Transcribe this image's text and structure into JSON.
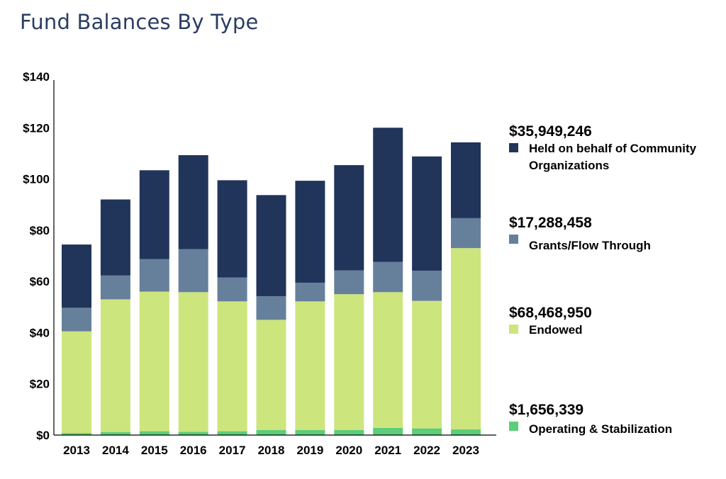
{
  "chart_data": {
    "type": "bar",
    "stacked": true,
    "title": "Fund Balances By Type",
    "xlabel": "",
    "ylabel": "",
    "ylim": [
      0,
      140
    ],
    "grid": false,
    "yticks": [
      {
        "value": 0,
        "label": "$0"
      },
      {
        "value": 20,
        "label": "$20"
      },
      {
        "value": 40,
        "label": "$40"
      },
      {
        "value": 60,
        "label": "$60"
      },
      {
        "value": 80,
        "label": "$80"
      },
      {
        "value": 100,
        "label": "$100"
      },
      {
        "value": 120,
        "label": "$120"
      },
      {
        "value": 140,
        "label": "$140"
      }
    ],
    "categories": [
      "2013",
      "2014",
      "2015",
      "2016",
      "2017",
      "2018",
      "2019",
      "2020",
      "2021",
      "2022",
      "2023"
    ],
    "series": [
      {
        "name": "Operating & Stabilization",
        "color": "#5ccd7a",
        "values": [
          0.8,
          1.2,
          1.5,
          1.3,
          1.5,
          2.0,
          2.0,
          2.0,
          2.8,
          2.6,
          2.2
        ]
      },
      {
        "name": "Endowed",
        "color": "#cde57d",
        "values": [
          39.7,
          51.8,
          54.5,
          54.5,
          50.7,
          43.0,
          50.2,
          53.0,
          53.0,
          49.8,
          70.8
        ]
      },
      {
        "name": "Grants/Flow Through",
        "color": "#66809c",
        "values": [
          9.2,
          9.3,
          12.7,
          16.8,
          9.3,
          9.2,
          7.3,
          9.3,
          11.8,
          11.8,
          11.7
        ]
      },
      {
        "name": "Held on behalf of Community Organizations",
        "color": "#213459",
        "values": [
          24.7,
          29.7,
          34.7,
          36.7,
          38.0,
          39.5,
          39.8,
          41.1,
          52.4,
          44.6,
          29.6
        ]
      }
    ],
    "legend_position": "right",
    "legend": [
      {
        "value": "$35,949,246",
        "label": "Held on behalf of Community Organizations",
        "color": "#213459"
      },
      {
        "value": "$17,288,458",
        "label": "Grants/Flow Through",
        "color": "#66809c"
      },
      {
        "value": "$68,468,950",
        "label": "Endowed",
        "color": "#cde57d"
      },
      {
        "value": "$1,656,339",
        "label": "Operating & Stabilization",
        "color": "#5ccd7a"
      }
    ]
  }
}
